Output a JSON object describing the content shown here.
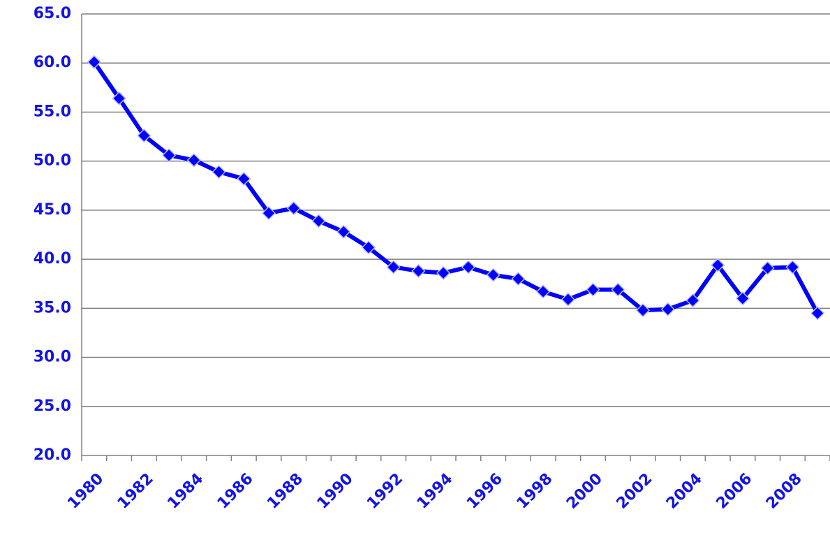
{
  "chart_data": {
    "type": "line",
    "categories": [
      "1980",
      null,
      "1982",
      null,
      "1984",
      null,
      "1986",
      null,
      "1988",
      null,
      "1990",
      null,
      "1992",
      null,
      "1994",
      null,
      "1996",
      null,
      "1998",
      null,
      "2000",
      null,
      "2002",
      null,
      "2004",
      null,
      "2006",
      null,
      "2008",
      null
    ],
    "values": [
      60.1,
      56.4,
      52.6,
      50.6,
      50.1,
      48.9,
      48.2,
      44.7,
      45.2,
      43.9,
      42.8,
      41.2,
      39.2,
      38.8,
      38.6,
      39.2,
      38.4,
      38.0,
      36.7,
      35.9,
      36.9,
      36.9,
      34.8,
      34.9,
      35.8,
      39.4,
      36.0,
      39.1,
      39.2,
      34.5
    ],
    "color": "#0000ff",
    "ylim": [
      20,
      65
    ],
    "yticks": [
      {
        "value": 20,
        "label": "20.0"
      },
      {
        "value": 25,
        "label": "25.0"
      },
      {
        "value": 30,
        "label": "30.0"
      },
      {
        "value": 35,
        "label": "35.0"
      },
      {
        "value": 40,
        "label": "40.0"
      },
      {
        "value": 45,
        "label": "45.0"
      },
      {
        "value": 50,
        "label": "50.0"
      },
      {
        "value": 55,
        "label": "55.0"
      },
      {
        "value": 60,
        "label": "60.0"
      },
      {
        "value": 65,
        "label": "65.0"
      }
    ],
    "grid": true
  }
}
